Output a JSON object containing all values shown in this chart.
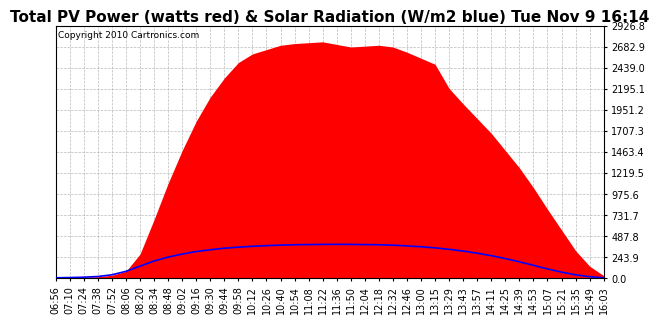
{
  "title": "Total PV Power (watts red) & Solar Radiation (W/m2 blue) Tue Nov 9 16:14",
  "copyright": "Copyright 2010 Cartronics.com",
  "background_color": "#ffffff",
  "plot_bg_color": "#ffffff",
  "grid_color": "#aaaaaa",
  "y_ticks": [
    0.0,
    243.9,
    487.8,
    731.7,
    975.6,
    1219.5,
    1463.4,
    1707.3,
    1951.2,
    2195.1,
    2439.0,
    2682.9,
    2926.8
  ],
  "y_max": 2926.8,
  "x_labels": [
    "06:56",
    "07:10",
    "07:24",
    "07:38",
    "07:52",
    "08:06",
    "08:20",
    "08:34",
    "08:48",
    "09:02",
    "09:16",
    "09:30",
    "09:44",
    "09:58",
    "10:12",
    "10:26",
    "10:40",
    "10:54",
    "11:08",
    "11:22",
    "11:36",
    "11:50",
    "12:04",
    "12:18",
    "12:32",
    "12:46",
    "13:00",
    "13:15",
    "13:29",
    "13:43",
    "13:57",
    "14:11",
    "14:25",
    "14:39",
    "14:53",
    "15:07",
    "15:21",
    "15:35",
    "15:49",
    "16:03"
  ],
  "pv_color": "#ff0000",
  "solar_color": "#0000ff",
  "pv_data": [
    5,
    8,
    12,
    18,
    35,
    80,
    280,
    680,
    1100,
    1480,
    1820,
    2100,
    2320,
    2500,
    2600,
    2650,
    2700,
    2720,
    2730,
    2740,
    2710,
    2680,
    2690,
    2700,
    2680,
    2620,
    2550,
    2480,
    2200,
    2020,
    1850,
    1680,
    1480,
    1280,
    1050,
    800,
    560,
    320,
    140,
    30
  ],
  "solar_data": [
    5,
    8,
    12,
    20,
    40,
    80,
    140,
    200,
    245,
    280,
    310,
    330,
    348,
    360,
    370,
    378,
    384,
    388,
    390,
    392,
    393,
    392,
    390,
    388,
    383,
    375,
    365,
    352,
    335,
    315,
    290,
    262,
    228,
    190,
    150,
    108,
    70,
    40,
    18,
    5
  ],
  "title_fontsize": 11,
  "tick_fontsize": 7,
  "copyright_fontsize": 6.5
}
